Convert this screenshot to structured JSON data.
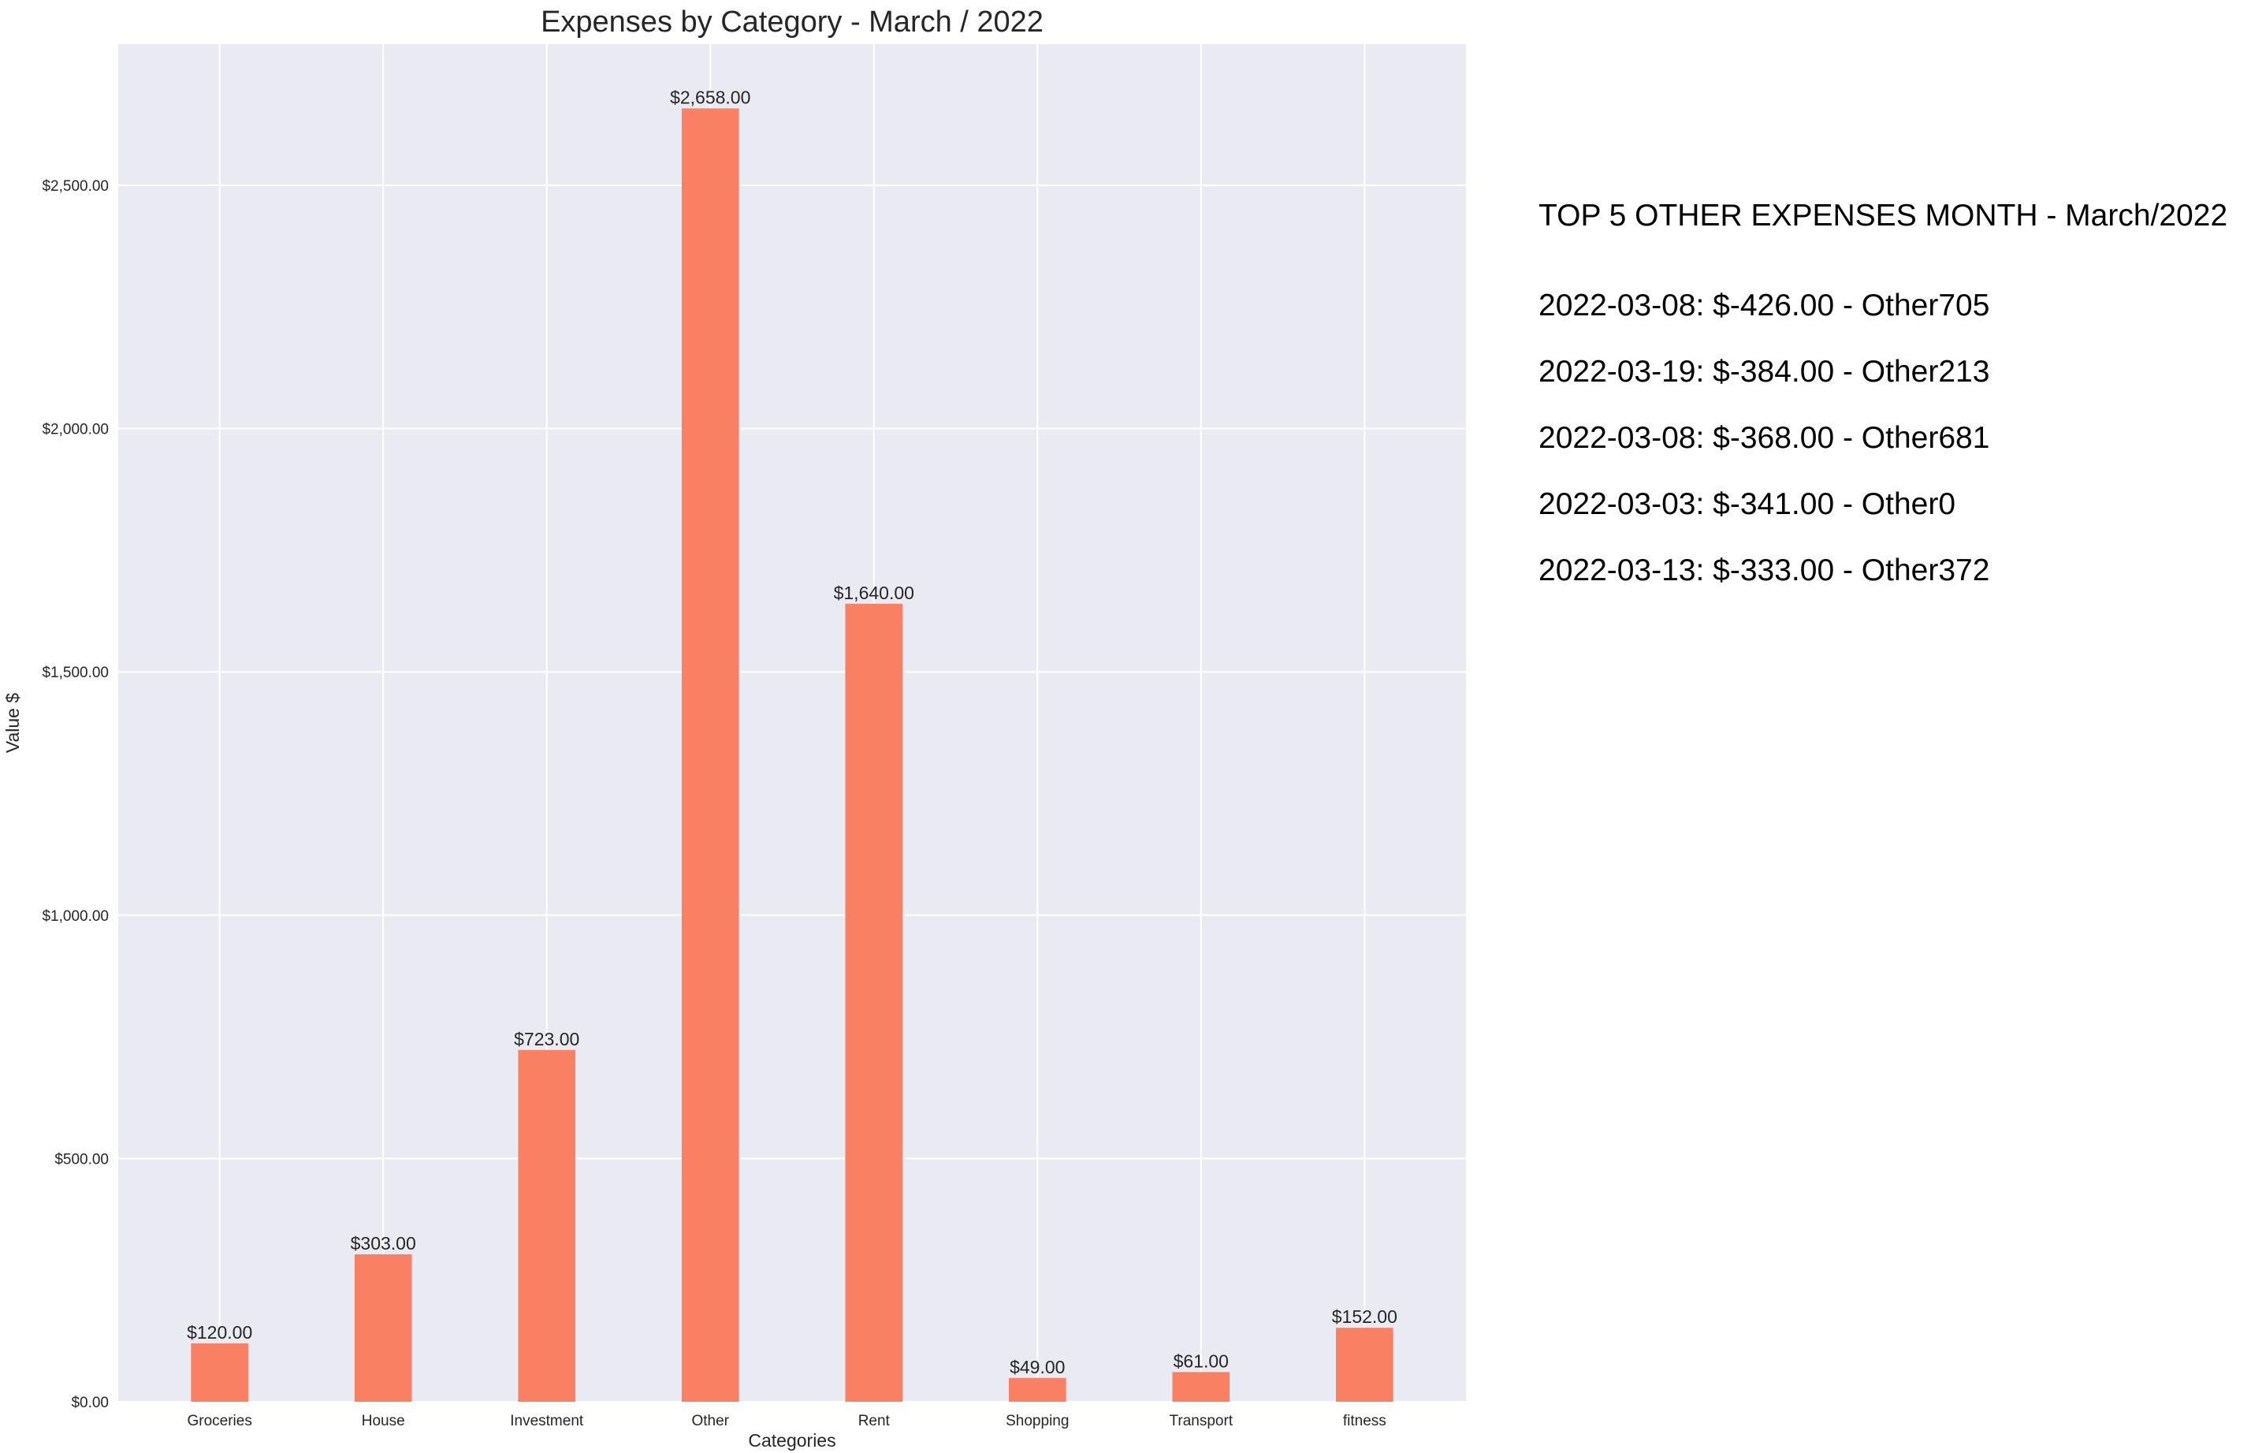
{
  "chart_data": {
    "type": "bar",
    "title": "Expenses by Category - March / 2022",
    "xlabel": "Categories",
    "ylabel": "Value $",
    "categories": [
      "Groceries",
      "House",
      "Investment",
      "Other",
      "Rent",
      "Shopping",
      "Transport",
      "fitness"
    ],
    "values": [
      120,
      303,
      723,
      2658,
      1640,
      49,
      61,
      152
    ],
    "value_labels": [
      "$120.00",
      "$303.00",
      "$723.00",
      "$2,658.00",
      "$1,640.00",
      "$49.00",
      "$61.00",
      "$152.00"
    ],
    "ylim": [
      0,
      2790
    ],
    "yticks": [
      0,
      500,
      1000,
      1500,
      2000,
      2500
    ],
    "ytick_labels": [
      "$0.00",
      "$500.00",
      "$1,000.00",
      "$1,500.00",
      "$2,000.00",
      "$2,500.00"
    ],
    "grid": true,
    "colors": {
      "bar": "#fa8063",
      "plot_background": "#eaeaf2",
      "grid": "#ffffff"
    }
  },
  "side_panel": {
    "title": "TOP 5 OTHER EXPENSES MONTH - March/2022",
    "items": [
      "2022-03-08: $-426.00 - Other705",
      "2022-03-19: $-384.00 - Other213",
      "2022-03-08: $-368.00 - Other681",
      "2022-03-03: $-341.00 - Other0",
      "2022-03-13: $-333.00 - Other372"
    ]
  }
}
